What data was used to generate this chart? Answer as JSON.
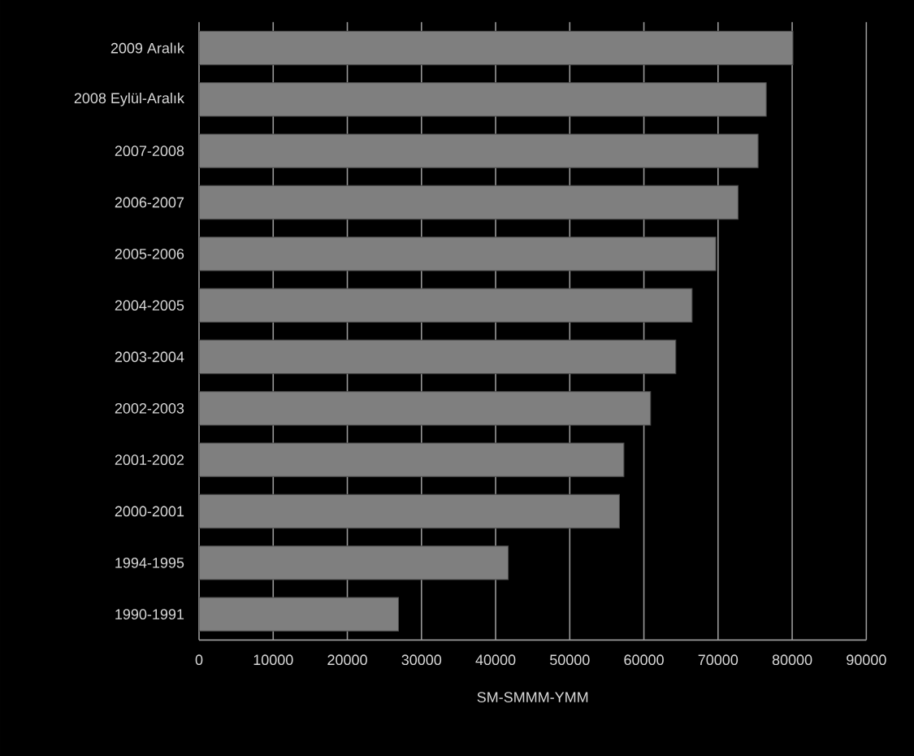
{
  "chart_data": {
    "type": "bar",
    "orientation": "horizontal",
    "categories": [
      "2009 Aralık",
      "2008 Eylül-Aralık",
      "2007-2008",
      "2006-2007",
      "2005-2006",
      "2004-2005",
      "2003-2004",
      "2002-2003",
      "2001-2002",
      "2000-2001",
      "1994-1995",
      "1990-1991"
    ],
    "values": [
      80100,
      76500,
      75400,
      72700,
      69700,
      66500,
      64300,
      60900,
      57300,
      56700,
      41700,
      26900
    ],
    "color": "#7f7f7f",
    "xlim": [
      0,
      90000
    ],
    "xticks": [
      0,
      10000,
      20000,
      30000,
      40000,
      50000,
      60000,
      70000,
      80000,
      90000
    ],
    "xlabel": "SM-SMMM-YMM",
    "grid": "x"
  }
}
